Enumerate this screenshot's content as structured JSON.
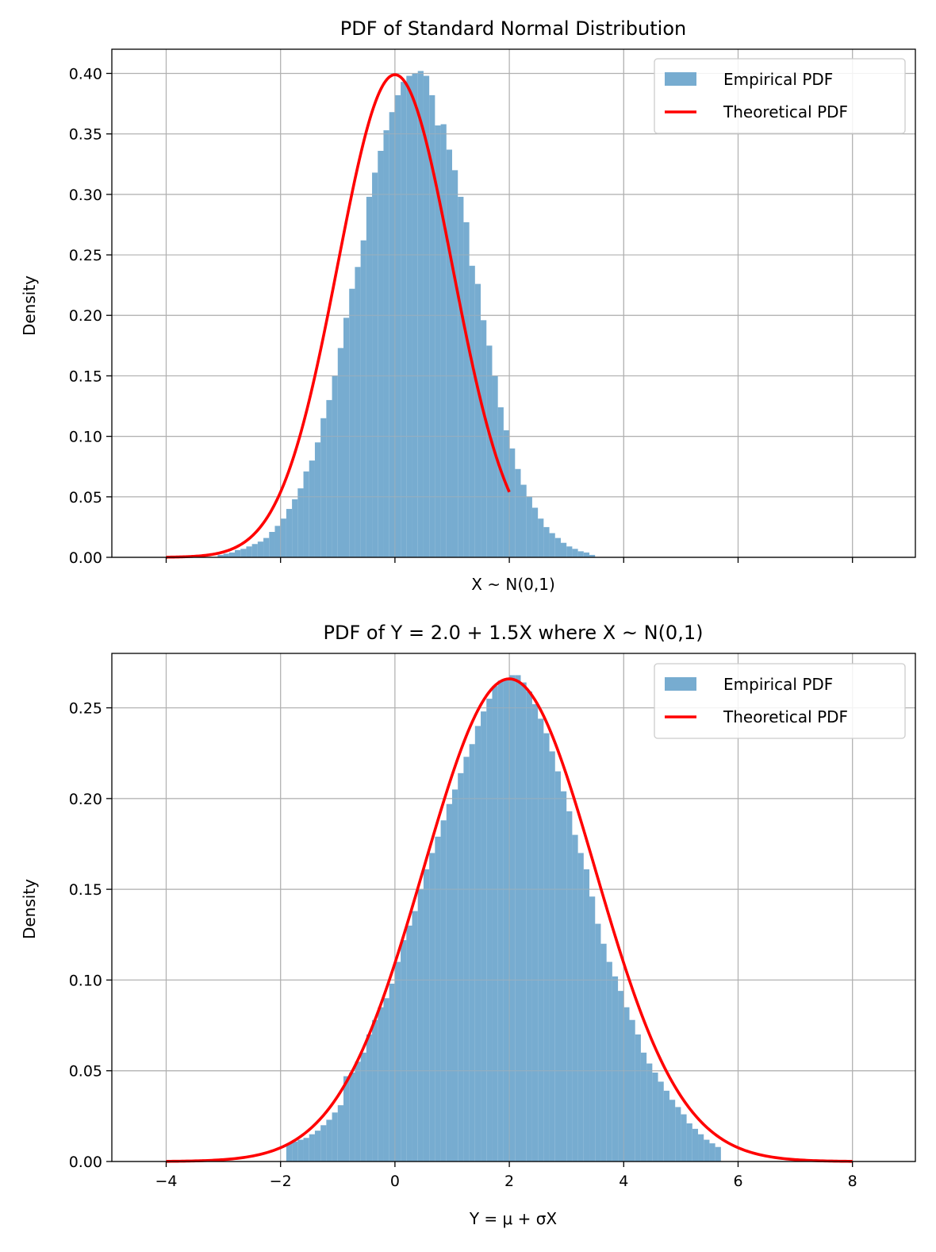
{
  "chart_data": [
    {
      "type": "histogram+line",
      "title": "PDF of Standard Normal Distribution",
      "xlabel": "X ~ N(0,1)",
      "ylabel": "Density",
      "xlim": [
        -4.95,
        9.1
      ],
      "ylim": [
        0,
        0.42
      ],
      "xticks": [
        -4,
        -2,
        0,
        2,
        4,
        6,
        8
      ],
      "xticklabels_visible": false,
      "yticks": [
        0.0,
        0.05,
        0.1,
        0.15,
        0.2,
        0.25,
        0.3,
        0.35,
        0.4
      ],
      "ytick_labels": [
        "0.00",
        "0.05",
        "0.10",
        "0.15",
        "0.20",
        "0.25",
        "0.30",
        "0.35",
        "0.40"
      ],
      "grid": true,
      "legend_position": "top-right",
      "series": [
        {
          "name": "Empirical PDF",
          "kind": "histogram",
          "color": "#77acd0",
          "bin_start": -3.1,
          "bin_width": 0.1,
          "values": [
            0.002,
            0.003,
            0.004,
            0.006,
            0.007,
            0.009,
            0.011,
            0.013,
            0.016,
            0.021,
            0.026,
            0.032,
            0.04,
            0.048,
            0.057,
            0.071,
            0.08,
            0.095,
            0.115,
            0.13,
            0.15,
            0.173,
            0.198,
            0.222,
            0.24,
            0.262,
            0.298,
            0.318,
            0.336,
            0.353,
            0.368,
            0.382,
            0.393,
            0.398,
            0.4,
            0.402,
            0.398,
            0.382,
            0.357,
            0.358,
            0.337,
            0.32,
            0.298,
            0.277,
            0.241,
            0.226,
            0.196,
            0.175,
            0.15,
            0.124,
            0.105,
            0.09,
            0.073,
            0.06,
            0.05,
            0.041,
            0.032,
            0.025,
            0.02,
            0.016,
            0.012,
            0.009,
            0.007,
            0.005,
            0.004,
            0.002
          ]
        },
        {
          "name": "Theoretical PDF",
          "kind": "line",
          "color": "#ff0000",
          "function": "normal_pdf",
          "mu": 0,
          "sigma": 1,
          "x_range": [
            -4,
            2
          ]
        }
      ]
    },
    {
      "type": "histogram+line",
      "title": "PDF of Y = 2.0 + 1.5X where X ~ N(0,1)",
      "xlabel": "Y = μ + σX",
      "ylabel": "Density",
      "xlim": [
        -4.95,
        9.1
      ],
      "ylim": [
        0,
        0.28
      ],
      "xticks": [
        -4,
        -2,
        0,
        2,
        4,
        6,
        8
      ],
      "xtick_labels": [
        "−4",
        "−2",
        "0",
        "2",
        "4",
        "6",
        "8"
      ],
      "yticks": [
        0.0,
        0.05,
        0.1,
        0.15,
        0.2,
        0.25
      ],
      "ytick_labels": [
        "0.00",
        "0.05",
        "0.10",
        "0.15",
        "0.20",
        "0.25"
      ],
      "grid": true,
      "legend_position": "top-right",
      "series": [
        {
          "name": "Empirical PDF",
          "kind": "histogram",
          "color": "#77acd0",
          "bin_start": -1.9,
          "bin_width": 0.1,
          "values": [
            0.01,
            0.011,
            0.012,
            0.013,
            0.015,
            0.017,
            0.02,
            0.023,
            0.027,
            0.031,
            0.047,
            0.049,
            0.055,
            0.06,
            0.07,
            0.078,
            0.085,
            0.09,
            0.098,
            0.11,
            0.122,
            0.13,
            0.138,
            0.15,
            0.161,
            0.17,
            0.179,
            0.188,
            0.197,
            0.205,
            0.214,
            0.223,
            0.23,
            0.24,
            0.248,
            0.255,
            0.262,
            0.265,
            0.266,
            0.268,
            0.268,
            0.264,
            0.259,
            0.252,
            0.244,
            0.236,
            0.226,
            0.215,
            0.204,
            0.193,
            0.18,
            0.17,
            0.161,
            0.146,
            0.131,
            0.12,
            0.11,
            0.102,
            0.094,
            0.085,
            0.078,
            0.07,
            0.06,
            0.054,
            0.049,
            0.044,
            0.039,
            0.034,
            0.03,
            0.026,
            0.021,
            0.018,
            0.015,
            0.012,
            0.01,
            0.008
          ]
        },
        {
          "name": "Theoretical PDF",
          "kind": "line",
          "color": "#ff0000",
          "function": "normal_pdf",
          "mu": 2.0,
          "sigma": 1.5,
          "x_range": [
            -4,
            8
          ]
        }
      ]
    }
  ]
}
